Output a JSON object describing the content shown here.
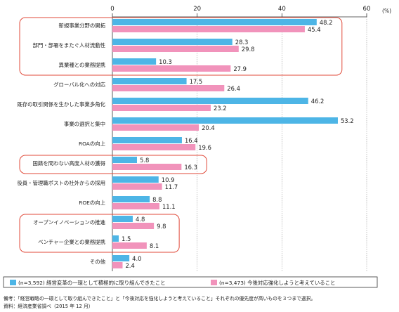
{
  "chart_data": {
    "type": "bar",
    "orientation": "horizontal",
    "unit": "(%)",
    "xlim": [
      0,
      60
    ],
    "ticks": [
      0,
      20,
      40,
      60
    ],
    "grid": true,
    "categories": [
      "新規事業分野の開拓",
      "部門・部署をまたぐ人材流動性",
      "異業種との業務提携",
      "グローバル化への対応",
      "既存の取引関係を生かした事業多角化",
      "事業の選択と集中",
      "ROAの向上",
      "国籍を問わない高度人材の獲得",
      "役員・管理職ポストの社外からの採用",
      "ROEの向上",
      "オープンイノベーションの推進",
      "ベンチャー企業との業務提携",
      "その他"
    ],
    "series": [
      {
        "name": "(n=3,592) 経営変革の一環として積極的に取り組んできたこと",
        "color": "#4db5e6",
        "values": [
          48.2,
          28.3,
          10.3,
          17.5,
          46.2,
          53.2,
          16.4,
          5.8,
          10.9,
          8.8,
          4.8,
          1.5,
          4.0
        ]
      },
      {
        "name": "(n=3,473) 今後対応強化しようと考えていること",
        "color": "#f193bb",
        "values": [
          45.4,
          29.8,
          27.9,
          26.4,
          23.2,
          20.4,
          19.6,
          16.3,
          11.7,
          11.1,
          9.8,
          8.1,
          2.4
        ]
      }
    ],
    "legend_position": "bottom",
    "highlight_groups": [
      {
        "from": 0,
        "to": 2
      },
      {
        "from": 7,
        "to": 7
      },
      {
        "from": 10,
        "to": 11
      }
    ],
    "highlight_color": "#e04a3a"
  },
  "notes": [
    "備考：「経営戦略の一環として取り組んできたこと」と「今後対応を強化しようと考えていること」それぞれの優先度が高いものを３つまで選択。",
    "資料：経済産業省調べ（2015 年 12 月）"
  ]
}
